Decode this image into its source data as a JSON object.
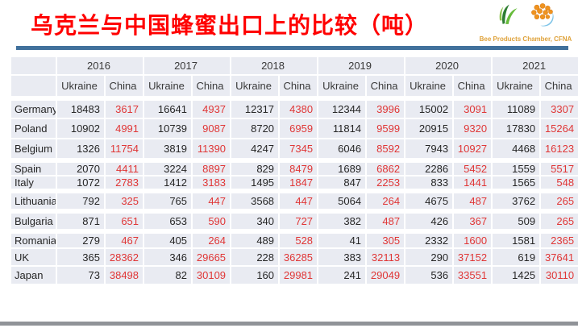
{
  "title": "乌克兰与中国蜂蜜出口上的比较（吨）",
  "logo": {
    "caption": "Bee Products Chamber, CFNA",
    "left_logo": "green-leaves-logo",
    "right_logo": "honeycomb-drop-logo"
  },
  "colors": {
    "title_red": "#ff0000",
    "china_value_red": "#e03636",
    "header_rule_blue": "#41719c",
    "footer_rule_gray": "#909398",
    "cell_background": "#e9ebf2"
  },
  "chart_data": {
    "type": "table",
    "title": "乌克兰与中国蜂蜜出口上的比较（吨）",
    "years": [
      "2016",
      "2017",
      "2018",
      "2019",
      "2020",
      "2021"
    ],
    "series_per_year": [
      "Ukraine",
      "China"
    ],
    "rows": [
      {
        "country": "Germany",
        "values": [
          "18483",
          "3617",
          "16641",
          "4937",
          "12317",
          "4380",
          "12344",
          "3996",
          "15002",
          "3091",
          "11089",
          "3307"
        ]
      },
      {
        "country": "Poland",
        "values": [
          "10902",
          "4991",
          "10739",
          "9087",
          "8720",
          "6959",
          "11814",
          "9599",
          "20915",
          "9320",
          "17830",
          "15264"
        ]
      },
      {
        "country": "Belgium",
        "values": [
          "1326",
          "11754",
          "3819",
          "11390",
          "4247",
          "7345",
          "6046",
          "8592",
          "7943",
          "10927",
          "4468",
          "16123"
        ]
      },
      {
        "country": "Spain",
        "values": [
          "2070",
          "4411",
          "3224",
          "8897",
          "829",
          "8479",
          "1689",
          "6862",
          "2286",
          "5452",
          "1559",
          "5517"
        ]
      },
      {
        "country": "Italy",
        "values": [
          "1072",
          "2783",
          "1412",
          "3183",
          "1495",
          "1847",
          "847",
          "2253",
          "833",
          "1441",
          "1565",
          "548"
        ]
      },
      {
        "country": "Lithuania",
        "values": [
          "792",
          "325",
          "765",
          "447",
          "3568",
          "447",
          "5064",
          "264",
          "4675",
          "487",
          "3762",
          "265"
        ]
      },
      {
        "country": "Bulgaria",
        "values": [
          "871",
          "651",
          "653",
          "590",
          "340",
          "727",
          "382",
          "487",
          "426",
          "367",
          "509",
          "265"
        ]
      },
      {
        "country": "Romania",
        "values": [
          "279",
          "467",
          "405",
          "264",
          "489",
          "528",
          "41",
          "305",
          "2332",
          "1600",
          "1581",
          "2365"
        ]
      },
      {
        "country": "UK",
        "values": [
          "365",
          "28362",
          "346",
          "29665",
          "228",
          "36285",
          "383",
          "32113",
          "290",
          "37152",
          "619",
          "37641"
        ]
      },
      {
        "country": "Japan",
        "values": [
          "73",
          "38498",
          "82",
          "30109",
          "160",
          "29981",
          "241",
          "29049",
          "536",
          "33551",
          "1425",
          "30110"
        ]
      }
    ]
  }
}
